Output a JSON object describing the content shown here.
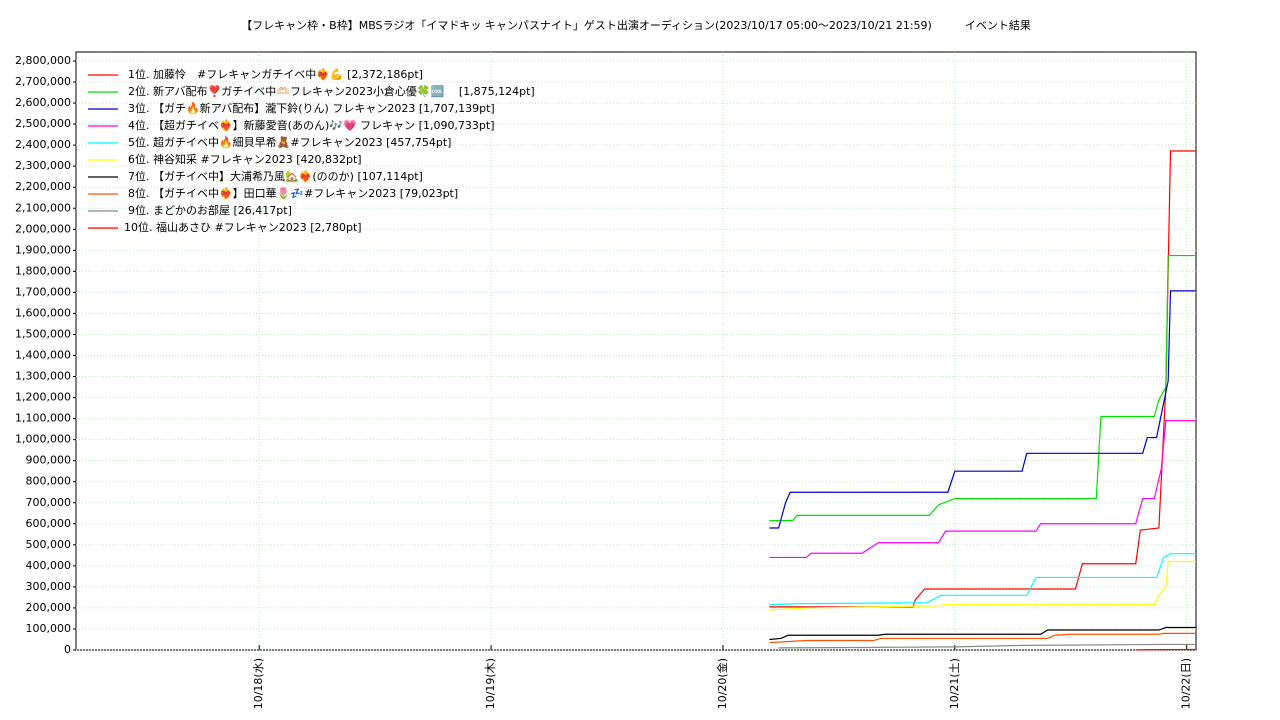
{
  "chart_data": {
    "type": "line",
    "title": "【フレキャン枠・B枠】MBSラジオ「イマドキッ キャンパスナイト」ゲスト出演オーディション(2023/10/17 05:00～2023/10/21 21:59)　　　イベント結果",
    "xlim": [
      17.21,
      22.04
    ],
    "xticks": [
      {
        "value": 18,
        "label": "10/18(水)"
      },
      {
        "value": 19,
        "label": "10/19(木)"
      },
      {
        "value": 20,
        "label": "10/20(金)"
      },
      {
        "value": 21,
        "label": "10/21(土)"
      },
      {
        "value": 22,
        "label": "10/22(日)"
      }
    ],
    "ylim": [
      0,
      2800000
    ],
    "yticks": [
      0,
      {
        "value": 100000,
        "label": "100,000"
      },
      {
        "value": 200000,
        "label": "200,000"
      },
      {
        "value": 300000,
        "label": "300,000"
      },
      {
        "value": 400000,
        "label": "400,000"
      },
      {
        "value": 500000,
        "label": "500,000"
      },
      {
        "value": 600000,
        "label": "600,000"
      },
      {
        "value": 700000,
        "label": "700,000"
      },
      {
        "value": 800000,
        "label": "800,000"
      },
      {
        "value": 900000,
        "label": "900,000"
      },
      {
        "value": 1000000,
        "label": "1,000,000"
      },
      {
        "value": 1100000,
        "label": "1,100,000"
      },
      {
        "value": 1200000,
        "label": "1,200,000"
      },
      {
        "value": 1300000,
        "label": "1,300,000"
      },
      {
        "value": 1400000,
        "label": "1,400,000"
      },
      {
        "value": 1500000,
        "label": "1,500,000"
      },
      {
        "value": 1600000,
        "label": "1,600,000"
      },
      {
        "value": 1700000,
        "label": "1,700,000"
      },
      {
        "value": 1800000,
        "label": "1,800,000"
      },
      {
        "value": 1900000,
        "label": "1,900,000"
      },
      {
        "value": 2000000,
        "label": "2,000,000"
      },
      {
        "value": 2100000,
        "label": "2,100,000"
      },
      {
        "value": 2200000,
        "label": "2,200,000"
      },
      {
        "value": 2300000,
        "label": "2,300,000"
      },
      {
        "value": 2400000,
        "label": "2,400,000"
      },
      {
        "value": 2500000,
        "label": "2,500,000"
      },
      {
        "value": 2600000,
        "label": "2,600,000"
      },
      {
        "value": 2700000,
        "label": "2,700,000"
      },
      {
        "value": 2800000,
        "label": "2,800,000"
      }
    ],
    "grid": true,
    "legend": "upper left",
    "series": [
      {
        "name": "1位. 加藤怜　#フレキャンガチイベ中❤️‍🔥💪 [2,372,186pt]",
        "color": "#ff0000",
        "x": [
          20.2,
          20.82,
          20.83,
          20.87,
          21.52,
          21.55,
          21.78,
          21.8,
          21.88,
          21.91,
          21.93,
          22.04
        ],
        "values": [
          205000,
          205000,
          240000,
          290000,
          290000,
          410000,
          410000,
          570000,
          580000,
          1250000,
          2372186,
          2372186
        ]
      },
      {
        "name": "2位. 新アバ配布❣️ガチイベ中🫶🏻フレキャン2023小倉心優🍀🆒　 [1,875,124pt]",
        "color": "#00e000",
        "x": [
          20.2,
          20.3,
          20.32,
          20.89,
          20.93,
          21.0,
          21.61,
          21.63,
          21.86,
          21.88,
          21.91,
          21.92,
          22.04
        ],
        "values": [
          615000,
          615000,
          640000,
          640000,
          690000,
          720000,
          720000,
          1110000,
          1110000,
          1190000,
          1250000,
          1875124,
          1875124
        ]
      },
      {
        "name": "3位. 【ガチ🔥新アバ配布】瀧下鈴(りん) フレキャン2023 [1,707,139pt]",
        "color": "#0000cc",
        "x": [
          20.2,
          20.24,
          20.27,
          20.29,
          20.97,
          21.0,
          21.29,
          21.31,
          21.81,
          21.83,
          21.87,
          21.92,
          21.93,
          22.04
        ],
        "values": [
          580000,
          580000,
          700000,
          750000,
          750000,
          850000,
          850000,
          935000,
          935000,
          1010000,
          1010000,
          1280000,
          1707139,
          1707139
        ]
      },
      {
        "name": "4位. 【超ガチイベ❤️‍🔥】新藤愛音(あのん)🎶💗 フレキャン [1,090,733pt]",
        "color": "#ff00ff",
        "x": [
          20.2,
          20.36,
          20.38,
          20.6,
          20.67,
          20.93,
          20.96,
          21.35,
          21.37,
          21.78,
          21.81,
          21.86,
          21.89,
          21.91,
          22.04
        ],
        "values": [
          440000,
          440000,
          460000,
          460000,
          510000,
          510000,
          565000,
          565000,
          600000,
          600000,
          720000,
          720000,
          860000,
          1090733,
          1090733
        ]
      },
      {
        "name": "5位. 超ガチイベ中🔥細貝早希🧸#フレキャン2023 [457,754pt]",
        "color": "#00ffff",
        "x": [
          20.2,
          20.32,
          20.88,
          20.94,
          21.31,
          21.35,
          21.87,
          21.9,
          21.93,
          22.04
        ],
        "values": [
          215000,
          220000,
          225000,
          260000,
          260000,
          345000,
          345000,
          440000,
          457754,
          457754
        ]
      },
      {
        "name": "6位. 神谷知采 #フレキャン2023 [420,832pt]",
        "color": "#ffff00",
        "x": [
          20.2,
          20.36,
          20.93,
          20.95,
          21.86,
          21.88,
          21.91,
          21.92,
          22.04
        ],
        "values": [
          190000,
          200000,
          210000,
          215000,
          215000,
          260000,
          300000,
          420832,
          420832
        ]
      },
      {
        "name": "7位. 【ガチイベ中】大浦希乃風🏡❤️‍🔥(ののか) [107,114pt]",
        "color": "#000000",
        "x": [
          20.2,
          20.25,
          20.28,
          20.67,
          20.7,
          21.37,
          21.4,
          21.88,
          21.91,
          22.04
        ],
        "values": [
          50000,
          55000,
          70000,
          70000,
          75000,
          75000,
          95000,
          95000,
          107114,
          107114
        ]
      },
      {
        "name": "8位. 【ガチイベ中❤️‍🔥】田口華🌷💤#フレキャン2023 [79,023pt]",
        "color": "#ff5500",
        "x": [
          20.2,
          20.36,
          20.65,
          20.68,
          21.4,
          21.43,
          21.5,
          21.88,
          21.9,
          22.04
        ],
        "values": [
          35000,
          45000,
          45000,
          55000,
          55000,
          70000,
          75000,
          75000,
          79023,
          79023
        ]
      },
      {
        "name": "9位. まどかのお部屋 [26,417pt]",
        "color": "#888888",
        "x": [
          20.24,
          20.6,
          21.0,
          21.3,
          21.9,
          22.04
        ],
        "values": [
          10000,
          12000,
          15000,
          22000,
          26417,
          26417
        ]
      },
      {
        "name": "10位. 福山あさひ #フレキャン2023 [2,780pt]",
        "color": "#ff0000",
        "x": [
          21.78,
          22.04
        ],
        "values": [
          1000,
          2780
        ]
      }
    ]
  }
}
